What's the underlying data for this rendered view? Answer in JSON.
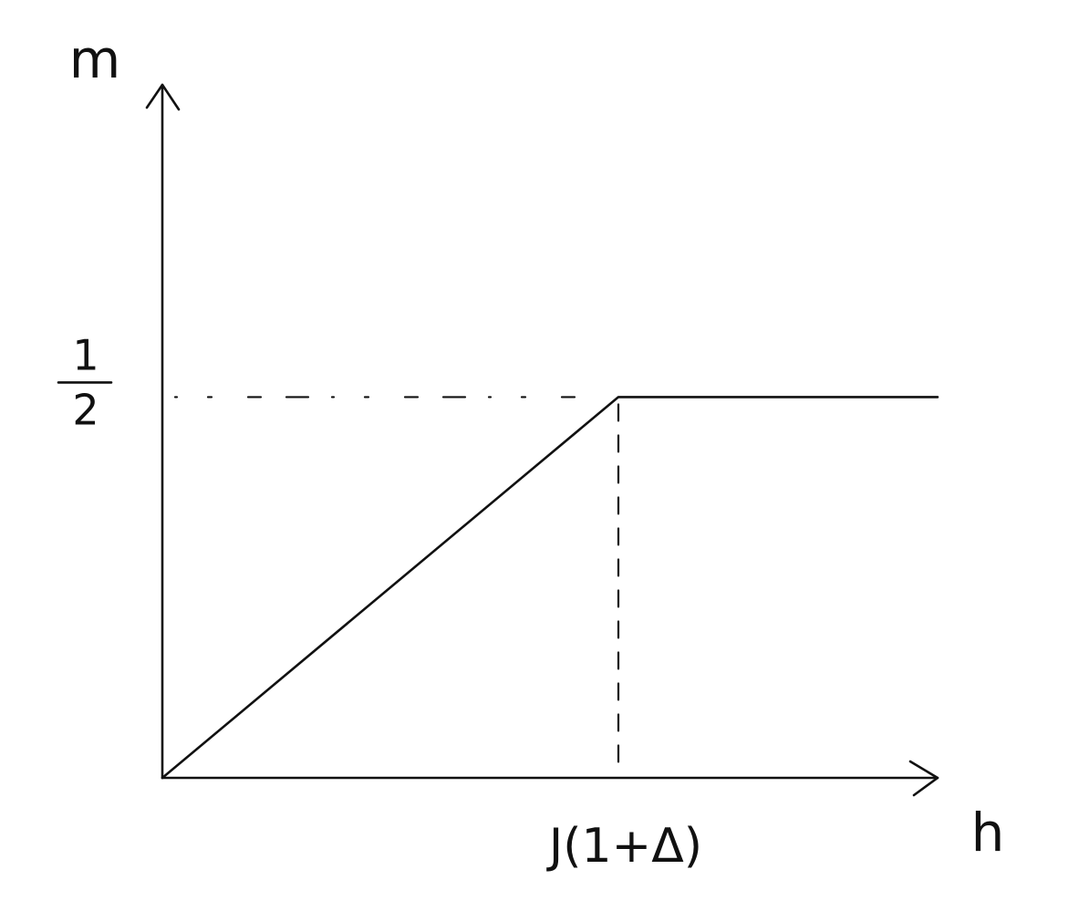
{
  "chart_data": {
    "type": "line",
    "xlabel": "h",
    "ylabel": "m",
    "x_tick_labels": [
      "J(1+Δ)"
    ],
    "y_tick_labels": {
      "numerator": "1",
      "denominator": "2"
    },
    "x": [
      0,
      1,
      1.7
    ],
    "series": [
      {
        "values": [
          0,
          0.5,
          0.5
        ]
      }
    ],
    "guides": [
      {
        "orientation": "horizontal",
        "style": "dashed",
        "at_y": 0.5,
        "from_x": 0,
        "to_x": 1
      },
      {
        "orientation": "vertical",
        "style": "dashed",
        "at_x": 1,
        "from_y": 0,
        "to_y": 0.5
      }
    ],
    "xlim": [
      0,
      1.7
    ],
    "ylim": [
      0,
      0.91
    ],
    "grid": false,
    "legend": "none"
  },
  "colors": {
    "ink": "#111111",
    "background": "#ffffff"
  }
}
